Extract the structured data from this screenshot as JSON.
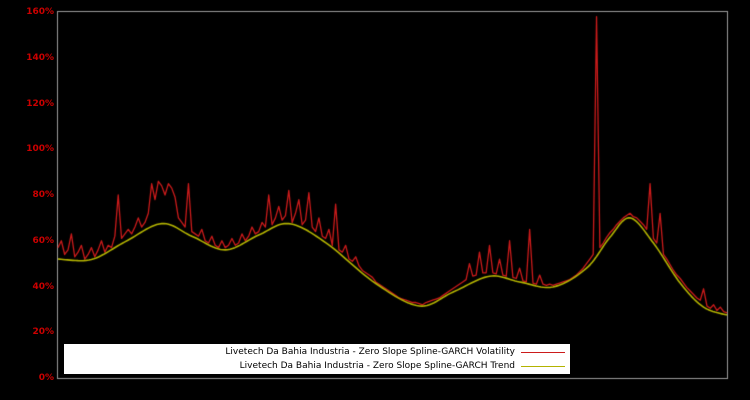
{
  "chart_data": {
    "type": "line",
    "title": "",
    "xlabel": "",
    "ylabel": "",
    "ylim": [
      0,
      160
    ],
    "x_max": 200,
    "grid": false,
    "background": "#000000",
    "plot_border_color": "#9b9b9b",
    "tick_color": "#cc0000",
    "y_ticks": [
      {
        "label": "0%",
        "value": 0
      },
      {
        "label": "20%",
        "value": 20
      },
      {
        "label": "40%",
        "value": 40
      },
      {
        "label": "60%",
        "value": 60
      },
      {
        "label": "80%",
        "value": 80
      },
      {
        "label": "100%",
        "value": 100
      },
      {
        "label": "120%",
        "value": 120
      },
      {
        "label": "140%",
        "value": 140
      },
      {
        "label": "160%",
        "value": 160
      }
    ],
    "series": [
      {
        "name": "Livetech Da Bahia Industria - Zero Slope Spline-GARCH Volatility",
        "color": "#cc1b1b",
        "values": [
          57,
          60,
          54,
          56,
          63,
          53,
          55,
          58,
          52,
          54,
          57,
          53,
          56,
          60,
          55,
          58,
          57,
          62,
          80,
          61,
          63,
          65,
          63,
          66,
          70,
          66,
          68,
          72,
          85,
          78,
          86,
          84,
          80,
          85,
          83,
          79,
          70,
          68,
          66,
          85,
          64,
          63,
          62,
          65,
          60,
          59,
          62,
          58,
          57,
          60,
          57,
          58,
          61,
          58,
          59,
          63,
          60,
          62,
          66,
          63,
          64,
          68,
          66,
          80,
          67,
          70,
          75,
          69,
          71,
          82,
          68,
          72,
          78,
          67,
          69,
          81,
          66,
          64,
          70,
          62,
          61,
          65,
          58,
          76,
          56,
          55,
          58,
          52,
          51,
          53,
          49,
          47,
          46,
          45,
          44,
          42,
          41,
          40,
          39,
          38,
          37,
          36,
          35,
          34.5,
          34,
          33.5,
          33,
          33,
          32.5,
          32,
          33,
          33.5,
          34,
          34.5,
          35,
          36,
          37,
          38,
          39,
          40,
          41,
          42,
          43,
          50,
          44.5,
          45,
          55,
          46,
          46,
          58,
          46,
          45.5,
          52,
          45,
          44.5,
          60,
          44,
          43.5,
          48,
          42.5,
          42,
          65,
          41.5,
          41,
          45,
          41,
          40.5,
          41,
          40.5,
          41,
          41.5,
          42,
          42.5,
          43,
          44,
          45,
          46.5,
          48,
          50,
          52,
          54,
          158,
          57,
          59,
          61.5,
          63.5,
          65,
          67,
          68.5,
          70,
          71,
          72,
          70.5,
          70,
          68.5,
          67,
          65,
          85,
          61,
          59,
          72,
          54,
          52,
          49.5,
          47,
          45,
          43.5,
          41.5,
          39.5,
          38,
          36.5,
          35,
          34,
          39,
          31.5,
          30.5,
          32,
          29.5,
          31,
          29,
          28.5
        ]
      },
      {
        "name": "Livetech Da Bahia Industria - Zero Slope Spline-GARCH Trend",
        "color": "#b3b300",
        "keypoints": [
          [
            0,
            52
          ],
          [
            10,
            51.8
          ],
          [
            20,
            59.5
          ],
          [
            31,
            67.5
          ],
          [
            40,
            62
          ],
          [
            50,
            56
          ],
          [
            60,
            62.5
          ],
          [
            69,
            67.5
          ],
          [
            80,
            59.2
          ],
          [
            95,
            41.3
          ],
          [
            108,
            31.5
          ],
          [
            118,
            37.5
          ],
          [
            129,
            44.5
          ],
          [
            138,
            42
          ],
          [
            148,
            39.8
          ],
          [
            158,
            48
          ],
          [
            165,
            61.5
          ],
          [
            171,
            70
          ],
          [
            178,
            59
          ],
          [
            186,
            41.5
          ],
          [
            193,
            31
          ],
          [
            200,
            27.5
          ]
        ]
      }
    ],
    "legend_position": "bottom-center"
  },
  "legend": {
    "entries": [
      {
        "label": "Livetech Da Bahia Industria - Zero Slope Spline-GARCH Volatility",
        "color": "#cc1b1b"
      },
      {
        "label": "Livetech Da Bahia Industria - Zero Slope Spline-GARCH Trend",
        "color": "#b3b300"
      }
    ]
  }
}
